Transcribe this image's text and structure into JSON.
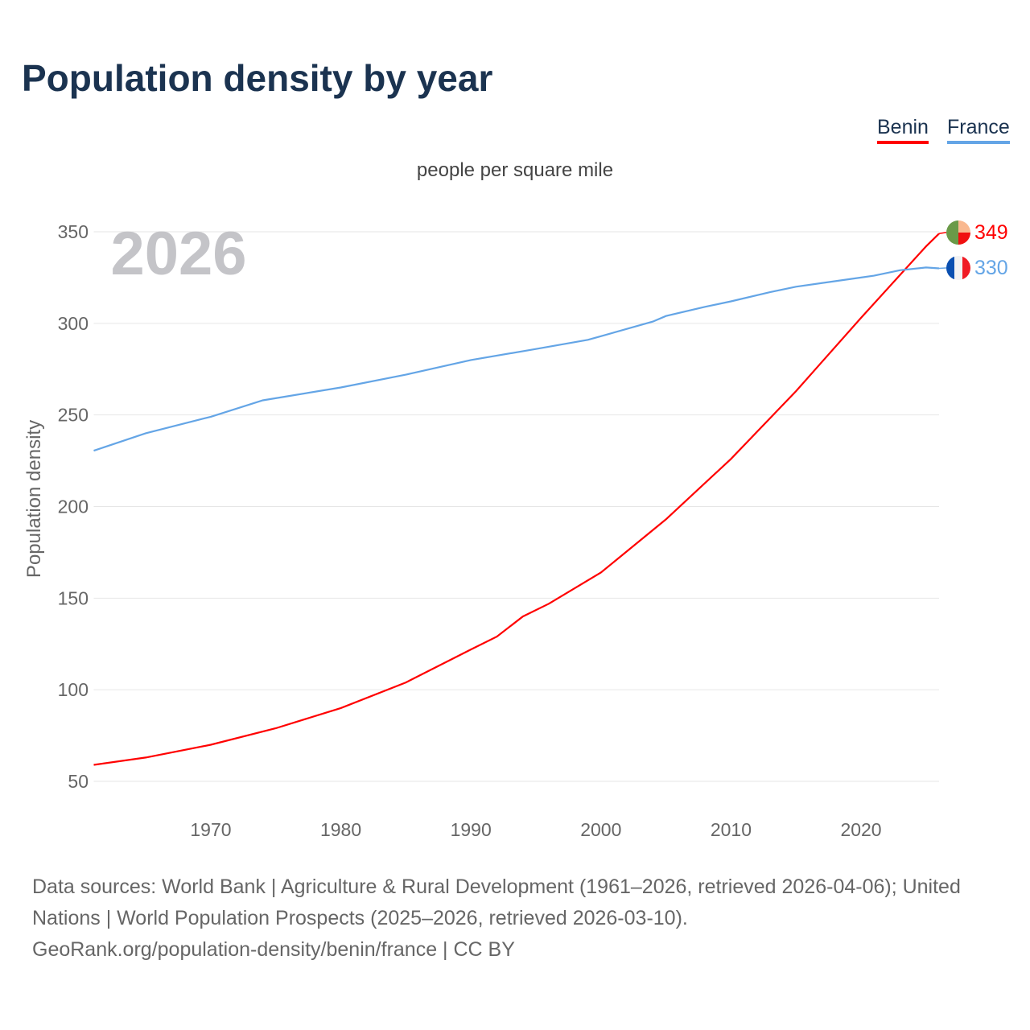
{
  "title": "Population density by year",
  "legend": [
    {
      "label": "Benin",
      "color": "#ff0000"
    },
    {
      "label": "France",
      "color": "#64a5e6"
    }
  ],
  "sources": {
    "line1": "Data sources: World Bank | Agriculture & Rural Development (1961–2026, retrieved 2026-04-06); United Nations | World Population Prospects (2025–2026, retrieved 2026-03-10).",
    "line2": "GeoRank.org/population-density/benin/france | CC BY"
  },
  "chart_data": {
    "type": "line",
    "title": "Population density by year",
    "subtitle": "people per square mile",
    "ylabel": "Population density",
    "xlabel": "",
    "year_watermark": "2026",
    "xlim": [
      1961,
      2026
    ],
    "ylim": [
      45,
      360
    ],
    "xticks": [
      1970,
      1980,
      1990,
      2000,
      2010,
      2020
    ],
    "yticks": [
      50,
      100,
      150,
      200,
      250,
      300,
      350
    ],
    "grid": true,
    "legend_position": "top-right",
    "series": [
      {
        "name": "Benin",
        "color": "#ff0000",
        "end_label": "349",
        "flag": "benin",
        "x": [
          1961,
          1965,
          1970,
          1975,
          1980,
          1985,
          1990,
          1992,
          1994,
          1996,
          2000,
          2005,
          2010,
          2015,
          2020,
          2025,
          2026
        ],
        "y": [
          59,
          63,
          70,
          79,
          90,
          104,
          122,
          129,
          140,
          147,
          164,
          193,
          226,
          263,
          303,
          342,
          349
        ]
      },
      {
        "name": "France",
        "color": "#64a5e6",
        "end_label": "330",
        "flag": "france",
        "x": [
          1961,
          1965,
          1970,
          1974,
          1980,
          1985,
          1990,
          1995,
          1999,
          2000,
          2004,
          2005,
          2008,
          2010,
          2013,
          2015,
          2020,
          2021,
          2023,
          2025,
          2026
        ],
        "y": [
          230.5,
          240,
          249,
          258,
          265,
          272,
          280,
          286,
          291,
          293,
          301,
          304,
          309,
          312,
          317,
          320,
          325,
          326,
          329,
          330.5,
          330
        ]
      }
    ]
  }
}
